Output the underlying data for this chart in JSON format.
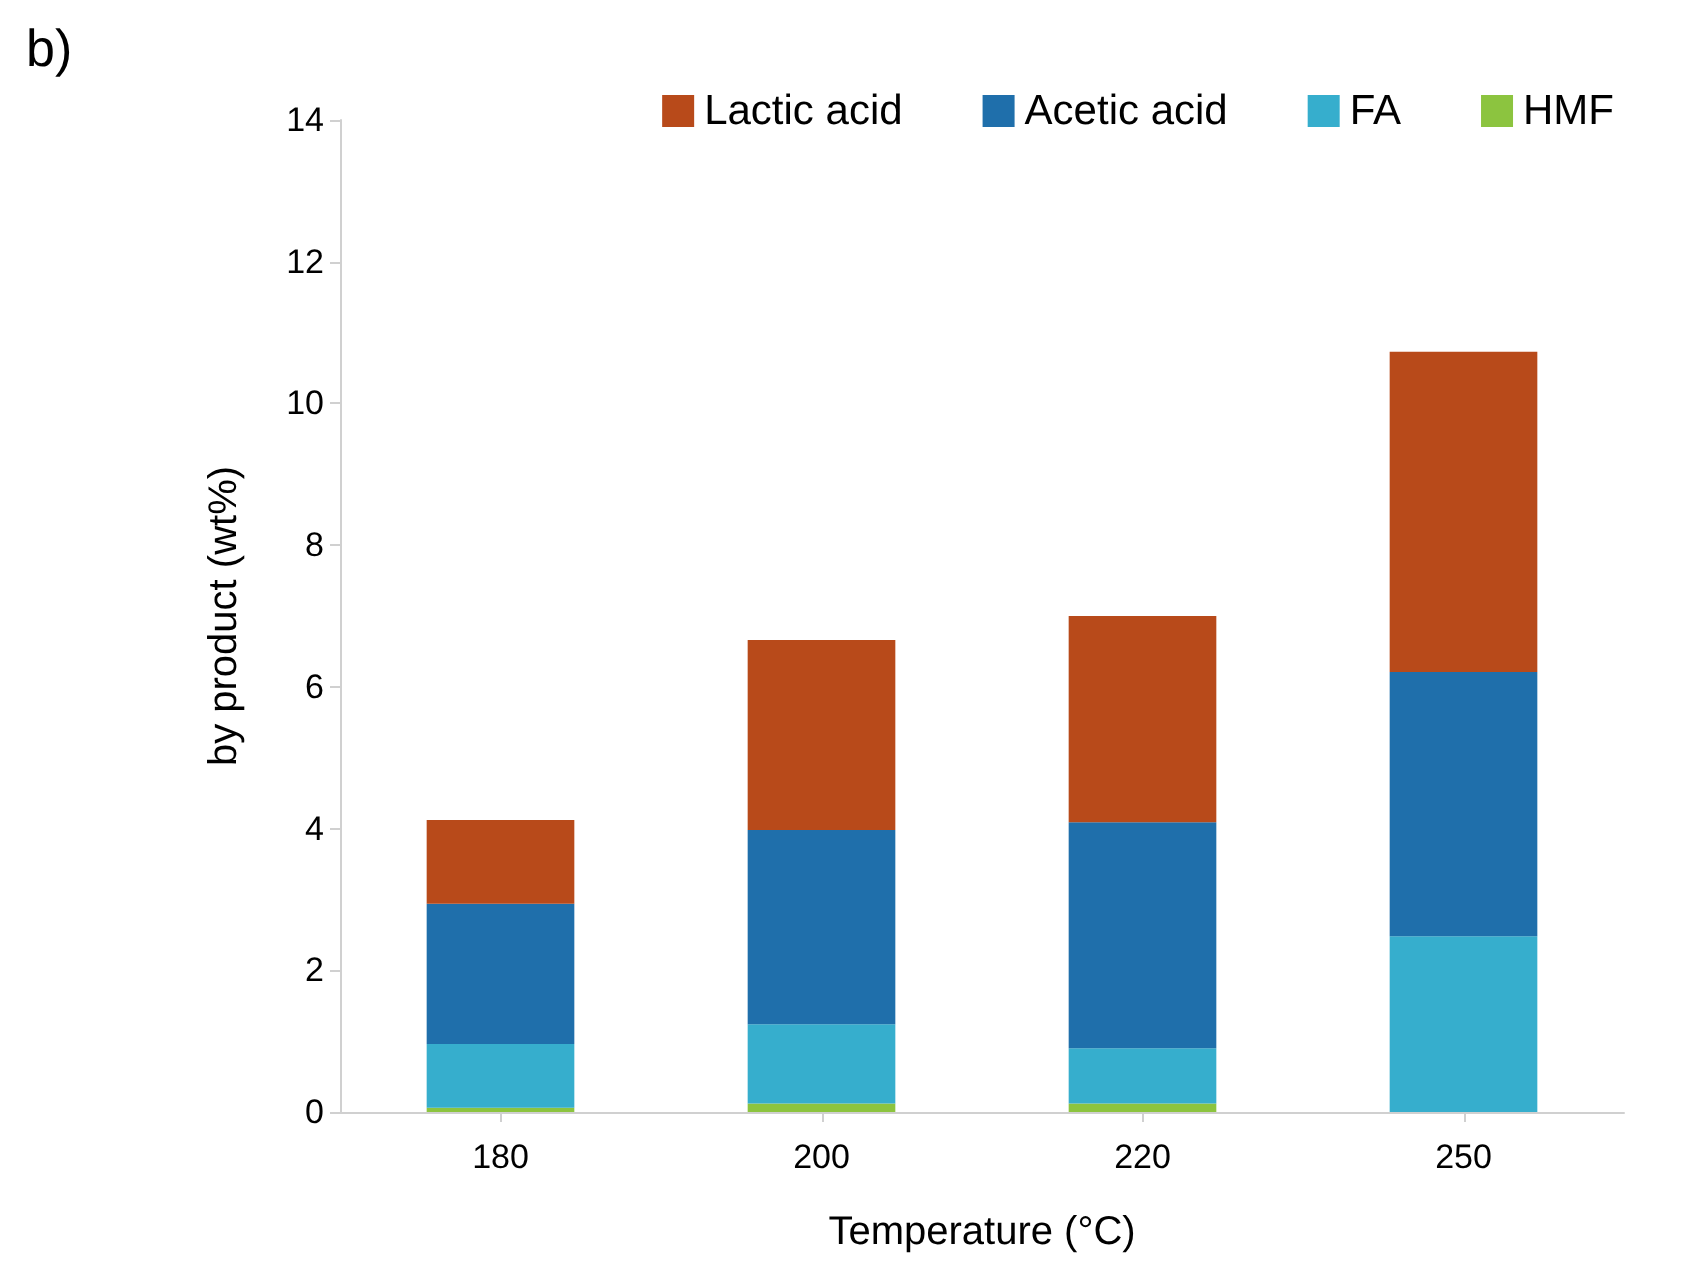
{
  "chart_data": {
    "type": "bar",
    "title": "b)",
    "xlabel": "Temperature (°C)",
    "ylabel": "by product (wt%)",
    "categories": [
      "180",
      "200",
      "220",
      "250"
    ],
    "stacked": true,
    "series": [
      {
        "name": "HMF",
        "color": "#8cc43f",
        "values": [
          0.06,
          0.12,
          0.12,
          0
        ]
      },
      {
        "name": "FA",
        "color": "#36aecd",
        "values": [
          0.9,
          1.12,
          0.78,
          2.48
        ]
      },
      {
        "name": "Acetic acid",
        "color": "#1f6fab",
        "values": [
          1.98,
          2.74,
          3.19,
          3.73
        ]
      },
      {
        "name": "Lactic acid",
        "color": "#b84a1a",
        "values": [
          1.18,
          2.68,
          2.91,
          4.52
        ]
      }
    ],
    "ylim": [
      0,
      14
    ],
    "yticks": [
      0,
      2,
      4,
      6,
      8,
      10,
      12,
      14
    ],
    "grid": false,
    "legend": "top right"
  }
}
